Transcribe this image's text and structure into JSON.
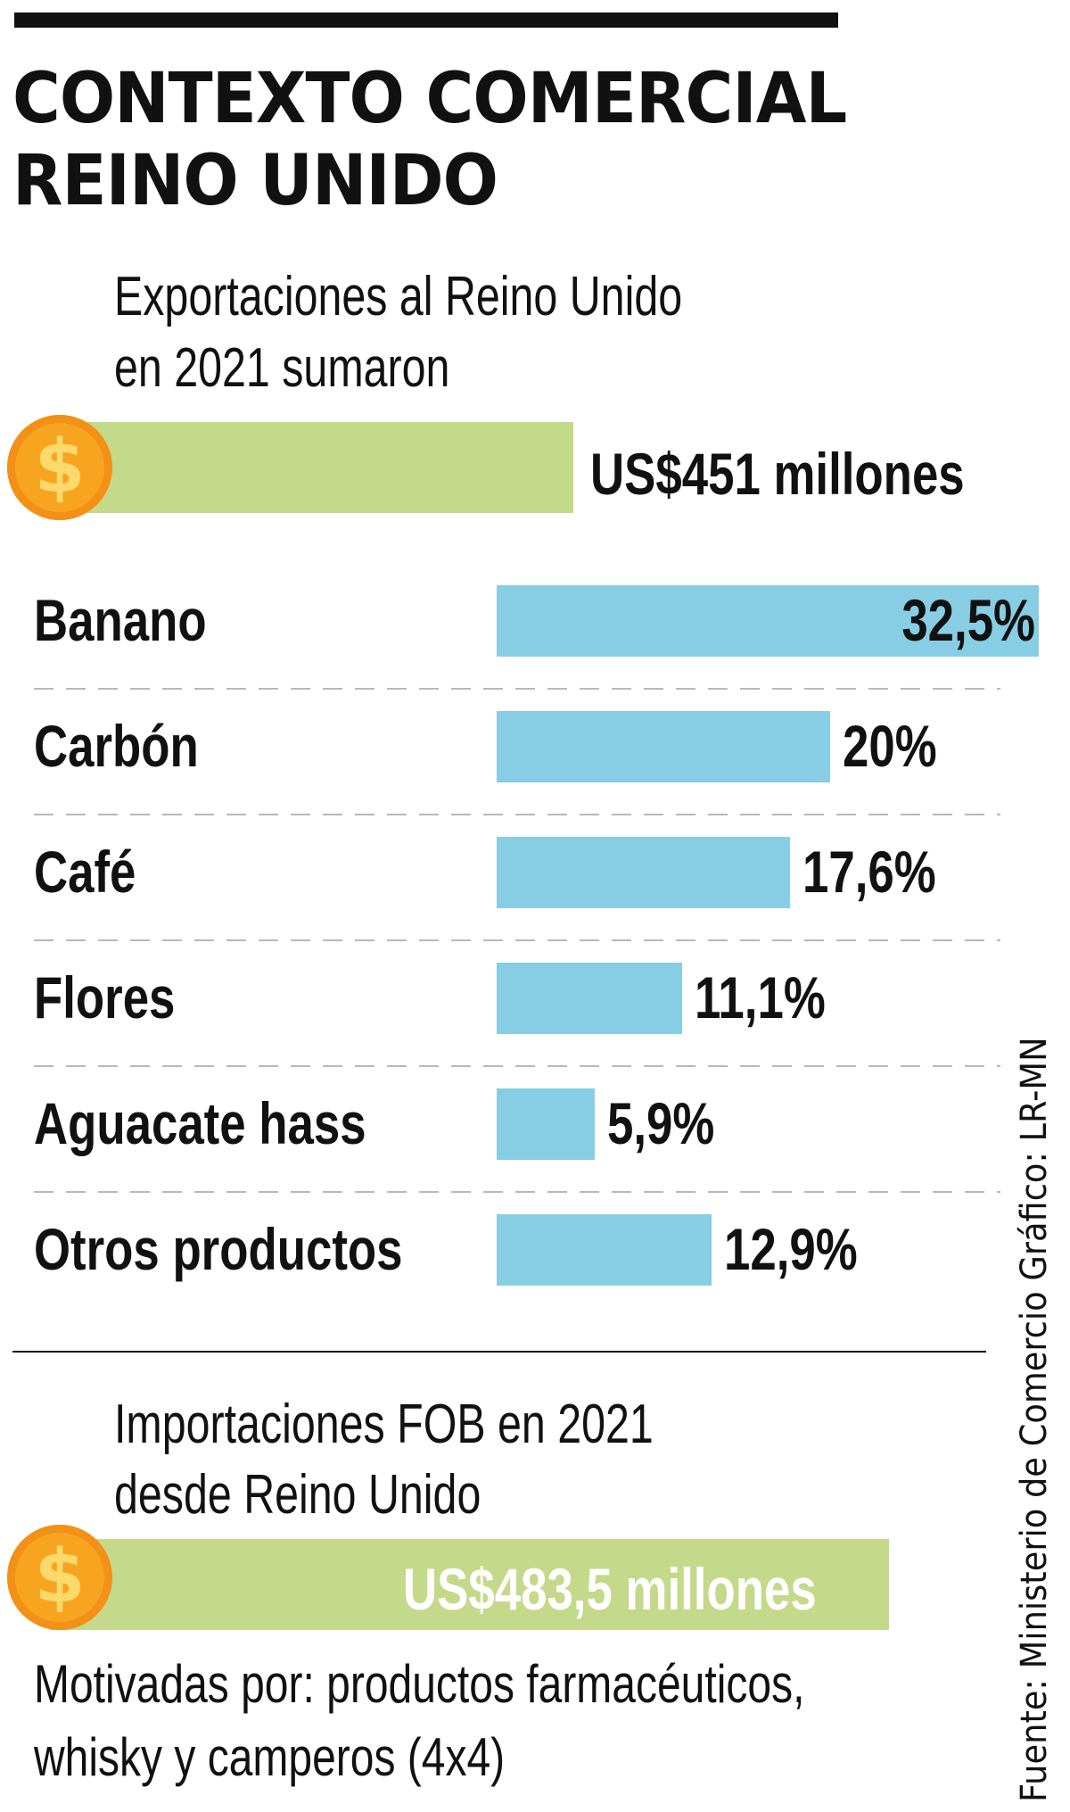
{
  "header": {
    "title_line1": "CONTEXTO COMERCIAL",
    "title_line2": "REINO UNIDO"
  },
  "exports": {
    "text_line1": "Exportaciones al Reino Unido",
    "text_line2": "en 2021 sumaron",
    "value": "US$451 millones",
    "icon": "dollar-coin-icon"
  },
  "chart_data": {
    "type": "bar",
    "orientation": "horizontal",
    "categories": [
      "Banano",
      "Carbón",
      "Café",
      "Flores",
      "Aguacate hass",
      "Otros productos"
    ],
    "values": [
      32.5,
      20,
      17.6,
      11.1,
      5.9,
      12.9
    ],
    "value_labels": [
      "32,5%",
      "20%",
      "17,6%",
      "11,1%",
      "5,9%",
      "12,9%"
    ],
    "unit": "%",
    "xlim": [
      0,
      32.5
    ],
    "grid": false,
    "separators": "dashed",
    "bar_color": "#87cde3"
  },
  "imports": {
    "text_line1": "Importaciones FOB en 2021",
    "text_line2": "desde Reino Unido",
    "value": "US$483,5 millones",
    "icon": "dollar-coin-icon"
  },
  "notes": {
    "line1": "Motivadas por: productos farmacéuticos,",
    "line2": "whisky y camperos (4x4)"
  },
  "source": "Fuente: Ministerio de Comercio    Gráfico: LR-MN",
  "colors": {
    "green_bar": "#c5d98a",
    "blue_bar": "#87cde3",
    "coin": "#f7a521",
    "text": "#111111"
  }
}
